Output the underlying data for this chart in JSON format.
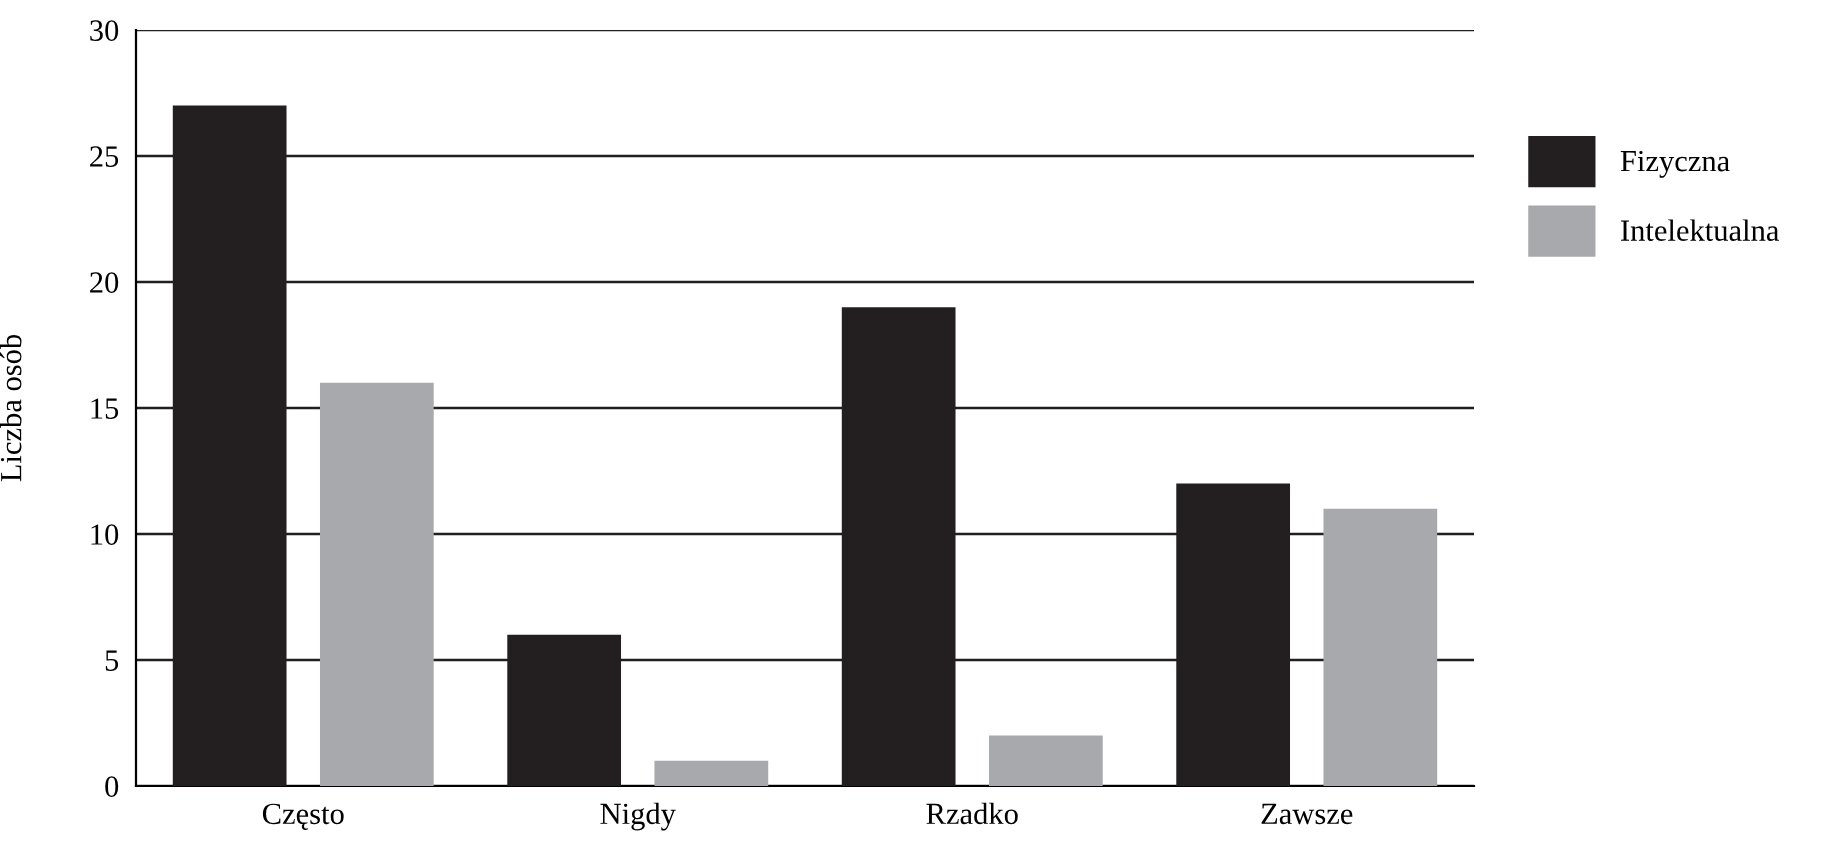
{
  "chart_data": {
    "type": "bar",
    "ylabel": "Liczba osób",
    "categories": [
      "Często",
      "Nigdy",
      "Rzadko",
      "Zawsze"
    ],
    "series": [
      {
        "name": "Fizyczna",
        "color": "#231f20",
        "values": [
          27,
          6,
          19,
          12
        ]
      },
      {
        "name": "Intelektualna",
        "color": "#a7a9ac",
        "values": [
          16,
          1,
          2,
          11
        ]
      }
    ],
    "ylim": [
      0,
      30
    ],
    "yticks": [
      0,
      5,
      10,
      15,
      20,
      25,
      30
    ],
    "grid": "y",
    "legend": "right"
  }
}
